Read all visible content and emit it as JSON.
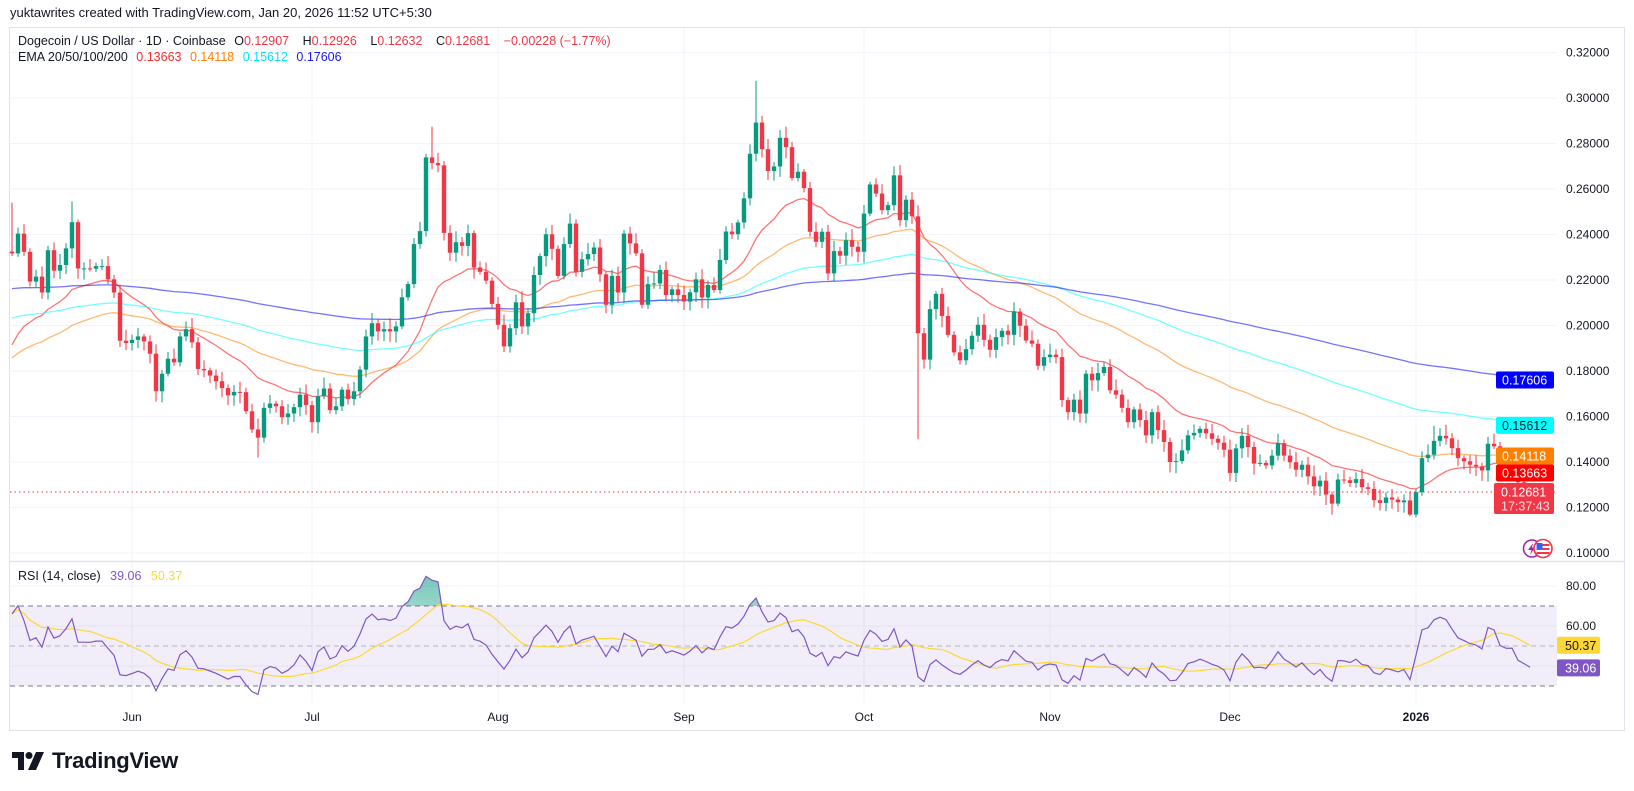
{
  "attribution": "yuktawrites created with TradingView.com, Jan 20, 2026 11:52 UTC+5:30",
  "legend": {
    "symbol": "Dogecoin / US Dollar · 1D · Coinbase",
    "o_label": "O",
    "o": "0.12907",
    "h_label": "H",
    "h": "0.12926",
    "l_label": "L",
    "l": "0.12632",
    "c_label": "C",
    "c": "0.12681",
    "change": "−0.00228 (−1.77%)",
    "ema_label": "EMA 20/50/100/200",
    "ema_values": [
      "0.13663",
      "0.14118",
      "0.15612",
      "0.17606"
    ]
  },
  "rsi_legend": {
    "label": "RSI (14, close)",
    "rsi": "39.06",
    "ma": "50.37"
  },
  "price_axis": {
    "ticks": [
      "0.32000",
      "0.30000",
      "0.28000",
      "0.26000",
      "0.24000",
      "0.22000",
      "0.20000",
      "0.18000",
      "0.16000",
      "0.14000",
      "0.12000",
      "0.10000"
    ]
  },
  "rsi_axis": {
    "ticks": [
      "80.00",
      "60.00"
    ]
  },
  "badges": {
    "last_price": "0.12681",
    "countdown": "17:37:43",
    "rsi": "39.06",
    "rsi_ma": "50.37"
  },
  "footer": {
    "brand": "TradingView"
  },
  "colors": {
    "up": "#089981",
    "down": "#f23645",
    "ema": [
      "#ff0000",
      "#ff8000",
      "#00ffff",
      "#0000ff"
    ],
    "ema_badge_text": [
      "#ffffff",
      "#ffffff",
      "#131722",
      "#ffffff"
    ],
    "rsi": "#7e57c2",
    "rsi_ma": "#fdd835",
    "grid": "#f0f3fa"
  },
  "icons": [
    "lightning-icon",
    "us-flag-icon",
    "tradingview-logo-icon"
  ],
  "chart_data": {
    "type": "candlestick",
    "title": "Dogecoin / US Dollar · 1D · Coinbase",
    "start_date": "2025-05-12",
    "ylim": [
      0.1,
      0.32
    ],
    "closes": [
      0.2317,
      0.2404,
      0.2324,
      0.2193,
      0.2215,
      0.2145,
      0.2331,
      0.2241,
      0.2266,
      0.2339,
      0.2454,
      0.2251,
      0.2251,
      0.225,
      0.2261,
      0.2261,
      0.2203,
      0.2145,
      0.1933,
      0.1923,
      0.1937,
      0.1952,
      0.193,
      0.1876,
      0.1711,
      0.1788,
      0.1854,
      0.1838,
      0.1952,
      0.1984,
      0.1926,
      0.1809,
      0.1803,
      0.178,
      0.1755,
      0.1725,
      0.1693,
      0.1708,
      0.1707,
      0.1623,
      0.1543,
      0.1507,
      0.1638,
      0.1657,
      0.1645,
      0.1597,
      0.1613,
      0.1641,
      0.1696,
      0.165,
      0.1575,
      0.1689,
      0.1723,
      0.1628,
      0.1645,
      0.1718,
      0.1677,
      0.1711,
      0.1806,
      0.1952,
      0.201,
      0.1974,
      0.1984,
      0.1974,
      0.1996,
      0.2124,
      0.2182,
      0.2358,
      0.2415,
      0.2739,
      0.2714,
      0.2704,
      0.2407,
      0.232,
      0.2366,
      0.235,
      0.2406,
      0.2255,
      0.2236,
      0.2197,
      0.2095,
      0.2003,
      0.1908,
      0.1988,
      0.2102,
      0.1996,
      0.2054,
      0.2222,
      0.2305,
      0.2401,
      0.2337,
      0.2218,
      0.2358,
      0.2448,
      0.2236,
      0.2291,
      0.2314,
      0.2343,
      0.2225,
      0.2091,
      0.2218,
      0.2145,
      0.2404,
      0.2361,
      0.2317,
      0.2091,
      0.2182,
      0.2185,
      0.2244,
      0.2134,
      0.2159,
      0.2134,
      0.2105,
      0.2146,
      0.2203,
      0.2123,
      0.2178,
      0.2156,
      0.2288,
      0.2413,
      0.2401,
      0.2453,
      0.2559,
      0.2755,
      0.2892,
      0.2775,
      0.2679,
      0.2699,
      0.2825,
      0.2784,
      0.2648,
      0.2676,
      0.2604,
      0.2412,
      0.2368,
      0.2412,
      0.2229,
      0.2327,
      0.2307,
      0.2375,
      0.2346,
      0.2324,
      0.2492,
      0.262,
      0.258,
      0.2507,
      0.2529,
      0.266,
      0.2463,
      0.2553,
      0.248,
      0.1966,
      0.185,
      0.2072,
      0.2139,
      0.2042,
      0.1959,
      0.1882,
      0.1847,
      0.1896,
      0.1955,
      0.2003,
      0.1937,
      0.1893,
      0.1949,
      0.1977,
      0.1959,
      0.2061,
      0.1999,
      0.1934,
      0.192,
      0.1823,
      0.1861,
      0.1872,
      0.1861,
      0.1672,
      0.1619,
      0.1674,
      0.1613,
      0.1788,
      0.1759,
      0.1791,
      0.1818,
      0.1715,
      0.1696,
      0.1638,
      0.1575,
      0.1631,
      0.1584,
      0.1517,
      0.1619,
      0.154,
      0.1488,
      0.14,
      0.1404,
      0.1451,
      0.1517,
      0.1528,
      0.1546,
      0.1526,
      0.1502,
      0.1485,
      0.1454,
      0.1352,
      0.146,
      0.1515,
      0.1466,
      0.1393,
      0.1396,
      0.1385,
      0.1428,
      0.1483,
      0.1428,
      0.1399,
      0.1366,
      0.1388,
      0.1337,
      0.1293,
      0.1318,
      0.1257,
      0.1217,
      0.1323,
      0.132,
      0.1308,
      0.1325,
      0.1289,
      0.1282,
      0.1232,
      0.122,
      0.1244,
      0.1235,
      0.1223,
      0.1231,
      0.1169,
      0.1267,
      0.1417,
      0.1432,
      0.1493,
      0.1515,
      0.1504,
      0.1461,
      0.1417,
      0.1403,
      0.1388,
      0.1381,
      0.1363,
      0.148,
      0.1469,
      0.1393,
      0.1377,
      0.1378,
      0.1311,
      0.12907,
      0.12681
    ],
    "first_open": 0.2325,
    "last_candle": {
      "o": 0.12907,
      "h": 0.12926,
      "l": 0.12632,
      "c": 0.12681
    },
    "high_overrides": {
      "0": 0.254,
      "10": 0.2545,
      "70": 0.2874,
      "124": 0.3076,
      "147": 0.27,
      "237": 0.156
    },
    "low_overrides": {
      "41": 0.142,
      "151": 0.15,
      "233": 0.1162,
      "252": 0.121
    },
    "ema": {
      "periods": [
        20,
        50,
        100,
        200
      ],
      "seeds": [
        0.1915,
        0.1857,
        0.2032,
        0.2162
      ],
      "final": [
        0.13663,
        0.14118,
        0.15612,
        0.17606
      ]
    },
    "rsi": {
      "period": 14,
      "ma_period": 14,
      "seed_avg_gain": 0.0035,
      "seed_avg_loss": 0.0018,
      "ylim": [
        20,
        90
      ],
      "overbought": 70,
      "middle": 50,
      "oversold": 30,
      "last": 39.06,
      "last_ma": 50.37
    },
    "x_ticks": [
      {
        "label": "Jun",
        "date": "2025-06-01"
      },
      {
        "label": "Jul",
        "date": "2025-07-01"
      },
      {
        "label": "Aug",
        "date": "2025-08-01"
      },
      {
        "label": "Sep",
        "date": "2025-09-01"
      },
      {
        "label": "Oct",
        "date": "2025-10-01"
      },
      {
        "label": "Nov",
        "date": "2025-11-01"
      },
      {
        "label": "Dec",
        "date": "2025-12-01"
      },
      {
        "label": "2026",
        "date": "2026-01-01",
        "bold": true
      }
    ]
  }
}
